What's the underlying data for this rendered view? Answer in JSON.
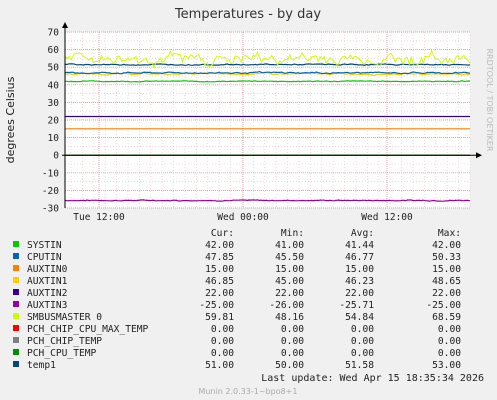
{
  "chart_data": {
    "type": "line",
    "title": "Temperatures - by day",
    "ylabel": "degrees Celsius",
    "side_label": "RRDTOOL / TOBI OETIKER",
    "ylim": [
      -30,
      70
    ],
    "yticks": [
      70,
      60,
      50,
      40,
      30,
      20,
      10,
      0,
      -10,
      -20,
      -30
    ],
    "xticks": [
      "Tue 12:00",
      "Wed 00:00",
      "Wed 12:00"
    ],
    "grid": true,
    "legend_columns": [
      "Cur:",
      "Min:",
      "Avg:",
      "Max:"
    ],
    "series": [
      {
        "name": "SYSTIN",
        "color": "#00cc00",
        "cur": "42.00",
        "min": "41.00",
        "avg": "41.44",
        "max": "42.00",
        "base": 42,
        "noise": 0.35
      },
      {
        "name": "CPUTIN",
        "color": "#0066b3",
        "cur": "47.85",
        "min": "45.50",
        "avg": "46.77",
        "max": "50.33",
        "base": 46.8,
        "noise": 0.6
      },
      {
        "name": "AUXTIN0",
        "color": "#ff8000",
        "cur": "15.00",
        "min": "15.00",
        "avg": "15.00",
        "max": "15.00",
        "base": 15,
        "noise": 0
      },
      {
        "name": "AUXTIN1",
        "color": "#ffcc00",
        "cur": "46.85",
        "min": "45.00",
        "avg": "46.23",
        "max": "48.65",
        "base": 46.2,
        "noise": 0.6
      },
      {
        "name": "AUXTIN2",
        "color": "#330099",
        "cur": "22.00",
        "min": "22.00",
        "avg": "22.00",
        "max": "22.00",
        "base": 22,
        "noise": 0
      },
      {
        "name": "AUXTIN3",
        "color": "#990099",
        "cur": "-25.00",
        "min": "-26.00",
        "avg": "-25.71",
        "max": "-25.00",
        "base": -25.7,
        "noise": 0.35
      },
      {
        "name": "SMBUSMASTER 0",
        "color": "#ccff00",
        "cur": "59.81",
        "min": "48.16",
        "avg": "54.84",
        "max": "68.59",
        "base": 54.8,
        "noise": 4.5
      },
      {
        "name": "PCH_CHIP_CPU_MAX_TEMP",
        "color": "#ff0000",
        "cur": "0.00",
        "min": "0.00",
        "avg": "0.00",
        "max": "0.00",
        "base": 0,
        "noise": 0
      },
      {
        "name": "PCH_CHIP_TEMP",
        "color": "#808080",
        "cur": "0.00",
        "min": "0.00",
        "avg": "0.00",
        "max": "0.00",
        "base": 0,
        "noise": 0
      },
      {
        "name": "PCH_CPU_TEMP",
        "color": "#008f00",
        "cur": "0.00",
        "min": "0.00",
        "avg": "0.00",
        "max": "0.00",
        "base": 0,
        "noise": 0
      },
      {
        "name": "temp1",
        "color": "#00487d",
        "cur": "51.00",
        "min": "50.00",
        "avg": "51.58",
        "max": "53.00",
        "base": 51.5,
        "noise": 0.45
      }
    ],
    "last_update": "Last update: Wed Apr 15 18:35:34 2026",
    "footer": "Munin 2.0.33-1~bpo8+1"
  }
}
